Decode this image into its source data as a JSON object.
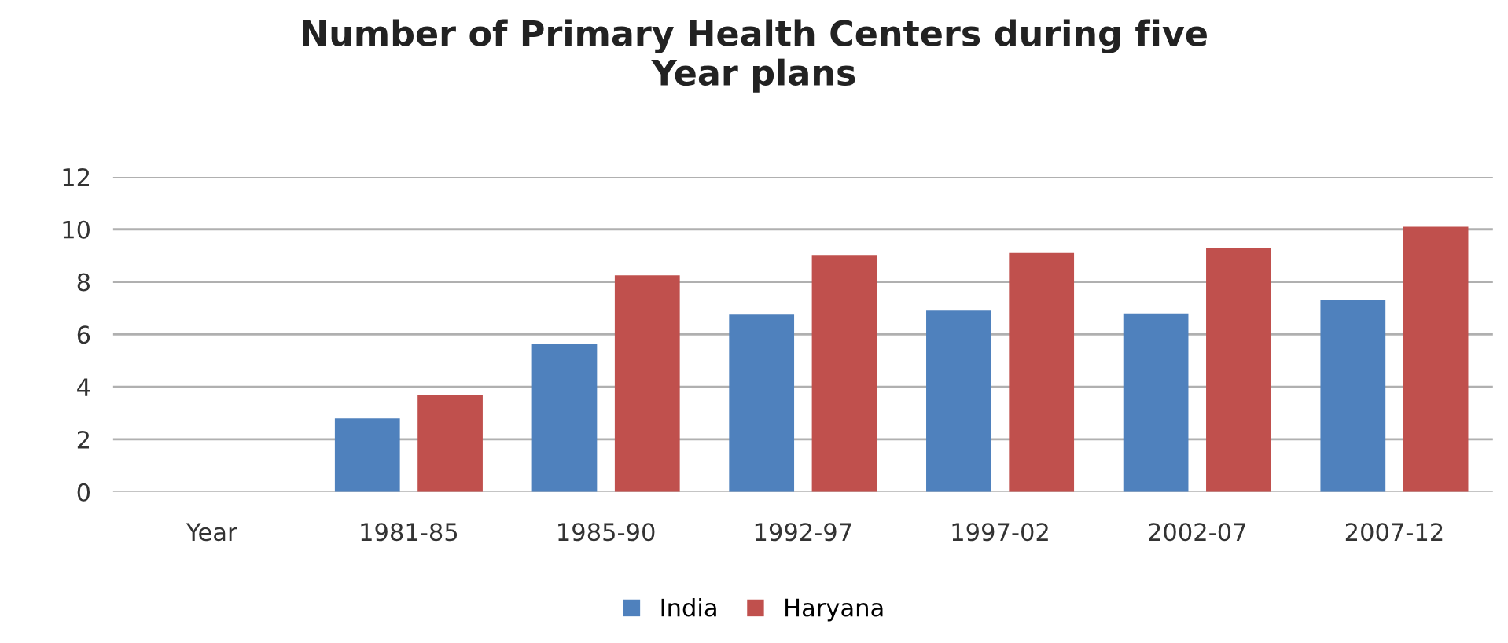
{
  "chart_data": {
    "type": "bar",
    "title": "Number of Primary Health Centers during five\nYear plans",
    "categories": [
      "Year",
      "1981-85",
      "1985-90",
      "1992-97",
      "1997-02",
      "2002-07",
      "2007-12"
    ],
    "series": [
      {
        "name": "India",
        "color": "#4f81bd",
        "values": [
          null,
          2.8,
          5.65,
          6.75,
          6.9,
          6.8,
          7.3
        ]
      },
      {
        "name": "Haryana",
        "color": "#c0504d",
        "values": [
          null,
          3.7,
          8.25,
          9.0,
          9.1,
          9.3,
          10.1
        ]
      }
    ],
    "ylim": [
      0,
      12
    ],
    "yticks": [
      0,
      2,
      4,
      6,
      8,
      10,
      12
    ],
    "grid": "y",
    "legend": "bottom"
  }
}
